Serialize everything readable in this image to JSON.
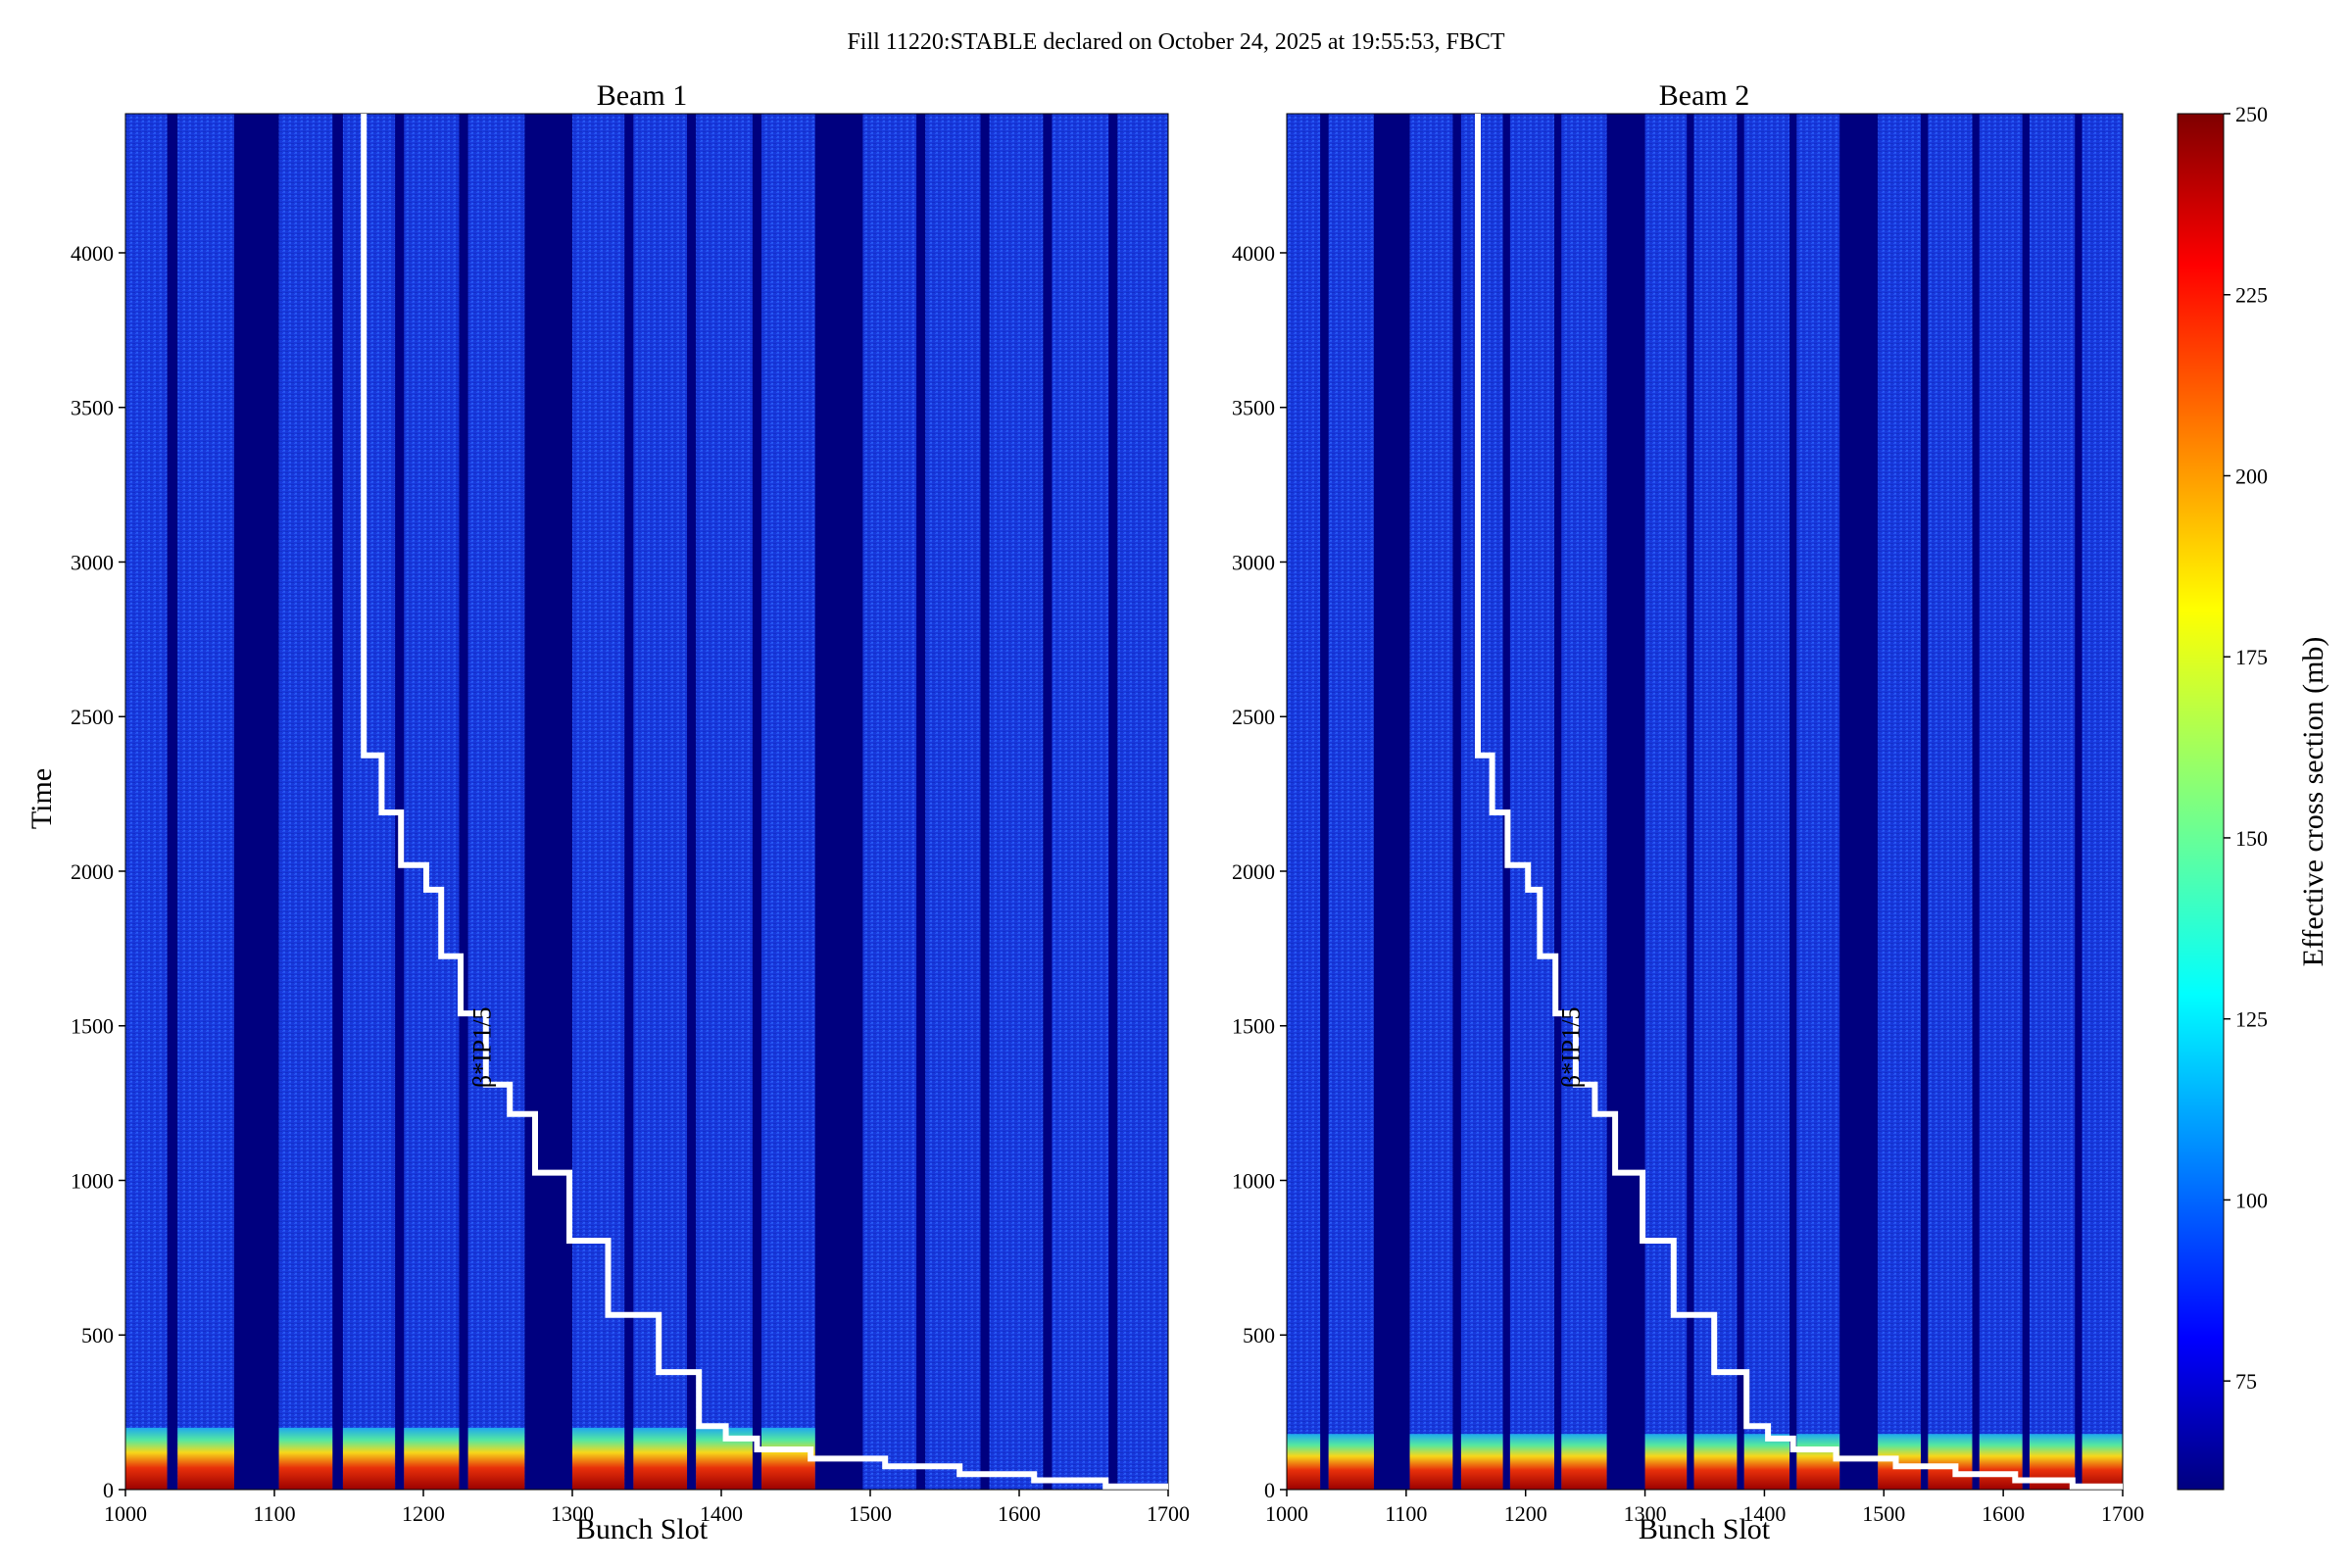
{
  "figure_title": "Fill 11220:STABLE declared on October 24, 2025 at 19:55:53, FBCT",
  "colors": {
    "empty": "#00007f",
    "base": "#1a3be0",
    "high": "#8b0000",
    "line": "#ffffff"
  },
  "chart_data": [
    {
      "type": "heatmap",
      "title": "Beam 1",
      "xlabel": "Bunch Slot",
      "ylabel": "Time",
      "xlim": [
        1000,
        1700
      ],
      "ylim": [
        0,
        4450
      ],
      "xticks": [
        1000,
        1100,
        1200,
        1300,
        1400,
        1500,
        1600,
        1700
      ],
      "yticks": [
        0,
        500,
        1000,
        1500,
        2000,
        2500,
        3000,
        3500,
        4000
      ],
      "filled_slot_ranges": [
        [
          1000,
          1028
        ],
        [
          1035,
          1073
        ],
        [
          1103,
          1139
        ],
        [
          1146,
          1181
        ],
        [
          1187,
          1224
        ],
        [
          1230,
          1268
        ],
        [
          1300,
          1335
        ],
        [
          1341,
          1377
        ],
        [
          1383,
          1421
        ],
        [
          1427,
          1463
        ],
        [
          1495,
          1531
        ],
        [
          1537,
          1574
        ],
        [
          1580,
          1616
        ],
        [
          1622,
          1660
        ],
        [
          1666,
          1700
        ]
      ],
      "high_band_time": [
        0,
        200
      ],
      "high_band_slot_max": 1470,
      "annotation": "β*IP1/5",
      "step_line": {
        "x": [
          1160,
          1160,
          1172,
          1172,
          1185,
          1185,
          1202,
          1202,
          1212,
          1212,
          1225,
          1225,
          1242,
          1242,
          1258,
          1258,
          1275,
          1275,
          1298,
          1298,
          1324,
          1324,
          1358,
          1358,
          1385,
          1385,
          1403,
          1403,
          1424,
          1424,
          1460,
          1460,
          1510,
          1510,
          1560,
          1560,
          1610,
          1610,
          1658,
          1658,
          1700
        ],
        "y": [
          4450,
          2375,
          2375,
          2190,
          2190,
          2020,
          2020,
          1940,
          1940,
          1725,
          1725,
          1540,
          1540,
          1310,
          1310,
          1215,
          1215,
          1025,
          1025,
          805,
          805,
          565,
          565,
          380,
          380,
          205,
          205,
          165,
          165,
          130,
          130,
          100,
          100,
          75,
          75,
          50,
          50,
          30,
          30,
          10,
          10
        ]
      }
    },
    {
      "type": "heatmap",
      "title": "Beam 2",
      "xlabel": "Bunch Slot",
      "ylabel": "",
      "xlim": [
        1000,
        1700
      ],
      "ylim": [
        0,
        4450
      ],
      "xticks": [
        1000,
        1100,
        1200,
        1300,
        1400,
        1500,
        1600,
        1700
      ],
      "yticks": [
        0,
        500,
        1000,
        1500,
        2000,
        2500,
        3000,
        3500,
        4000
      ],
      "filled_slot_ranges": [
        [
          1000,
          1028
        ],
        [
          1035,
          1073
        ],
        [
          1103,
          1139
        ],
        [
          1146,
          1181
        ],
        [
          1187,
          1224
        ],
        [
          1230,
          1268
        ],
        [
          1300,
          1335
        ],
        [
          1341,
          1377
        ],
        [
          1383,
          1421
        ],
        [
          1427,
          1463
        ],
        [
          1495,
          1531
        ],
        [
          1537,
          1574
        ],
        [
          1580,
          1616
        ],
        [
          1622,
          1660
        ],
        [
          1666,
          1700
        ]
      ],
      "high_band_time": [
        0,
        180
      ],
      "high_band_slot_max": 1700,
      "annotation": "β*IP1/5",
      "step_line": {
        "x": [
          1160,
          1160,
          1172,
          1172,
          1185,
          1185,
          1202,
          1202,
          1212,
          1212,
          1225,
          1225,
          1242,
          1242,
          1258,
          1258,
          1275,
          1275,
          1298,
          1298,
          1324,
          1324,
          1358,
          1358,
          1385,
          1385,
          1403,
          1403,
          1424,
          1424,
          1460,
          1460,
          1510,
          1510,
          1560,
          1560,
          1610,
          1610,
          1658,
          1658,
          1700
        ],
        "y": [
          4450,
          2375,
          2375,
          2190,
          2190,
          2020,
          2020,
          1940,
          1940,
          1725,
          1725,
          1540,
          1540,
          1310,
          1310,
          1215,
          1215,
          1025,
          1025,
          805,
          805,
          565,
          565,
          380,
          380,
          205,
          205,
          165,
          165,
          130,
          130,
          100,
          100,
          75,
          75,
          50,
          50,
          30,
          30,
          10,
          10
        ]
      }
    }
  ],
  "colorbar": {
    "label": "Effective cross section (mb)",
    "min": 60,
    "max": 250,
    "ticks": [
      75,
      100,
      125,
      150,
      175,
      200,
      225,
      250
    ]
  }
}
